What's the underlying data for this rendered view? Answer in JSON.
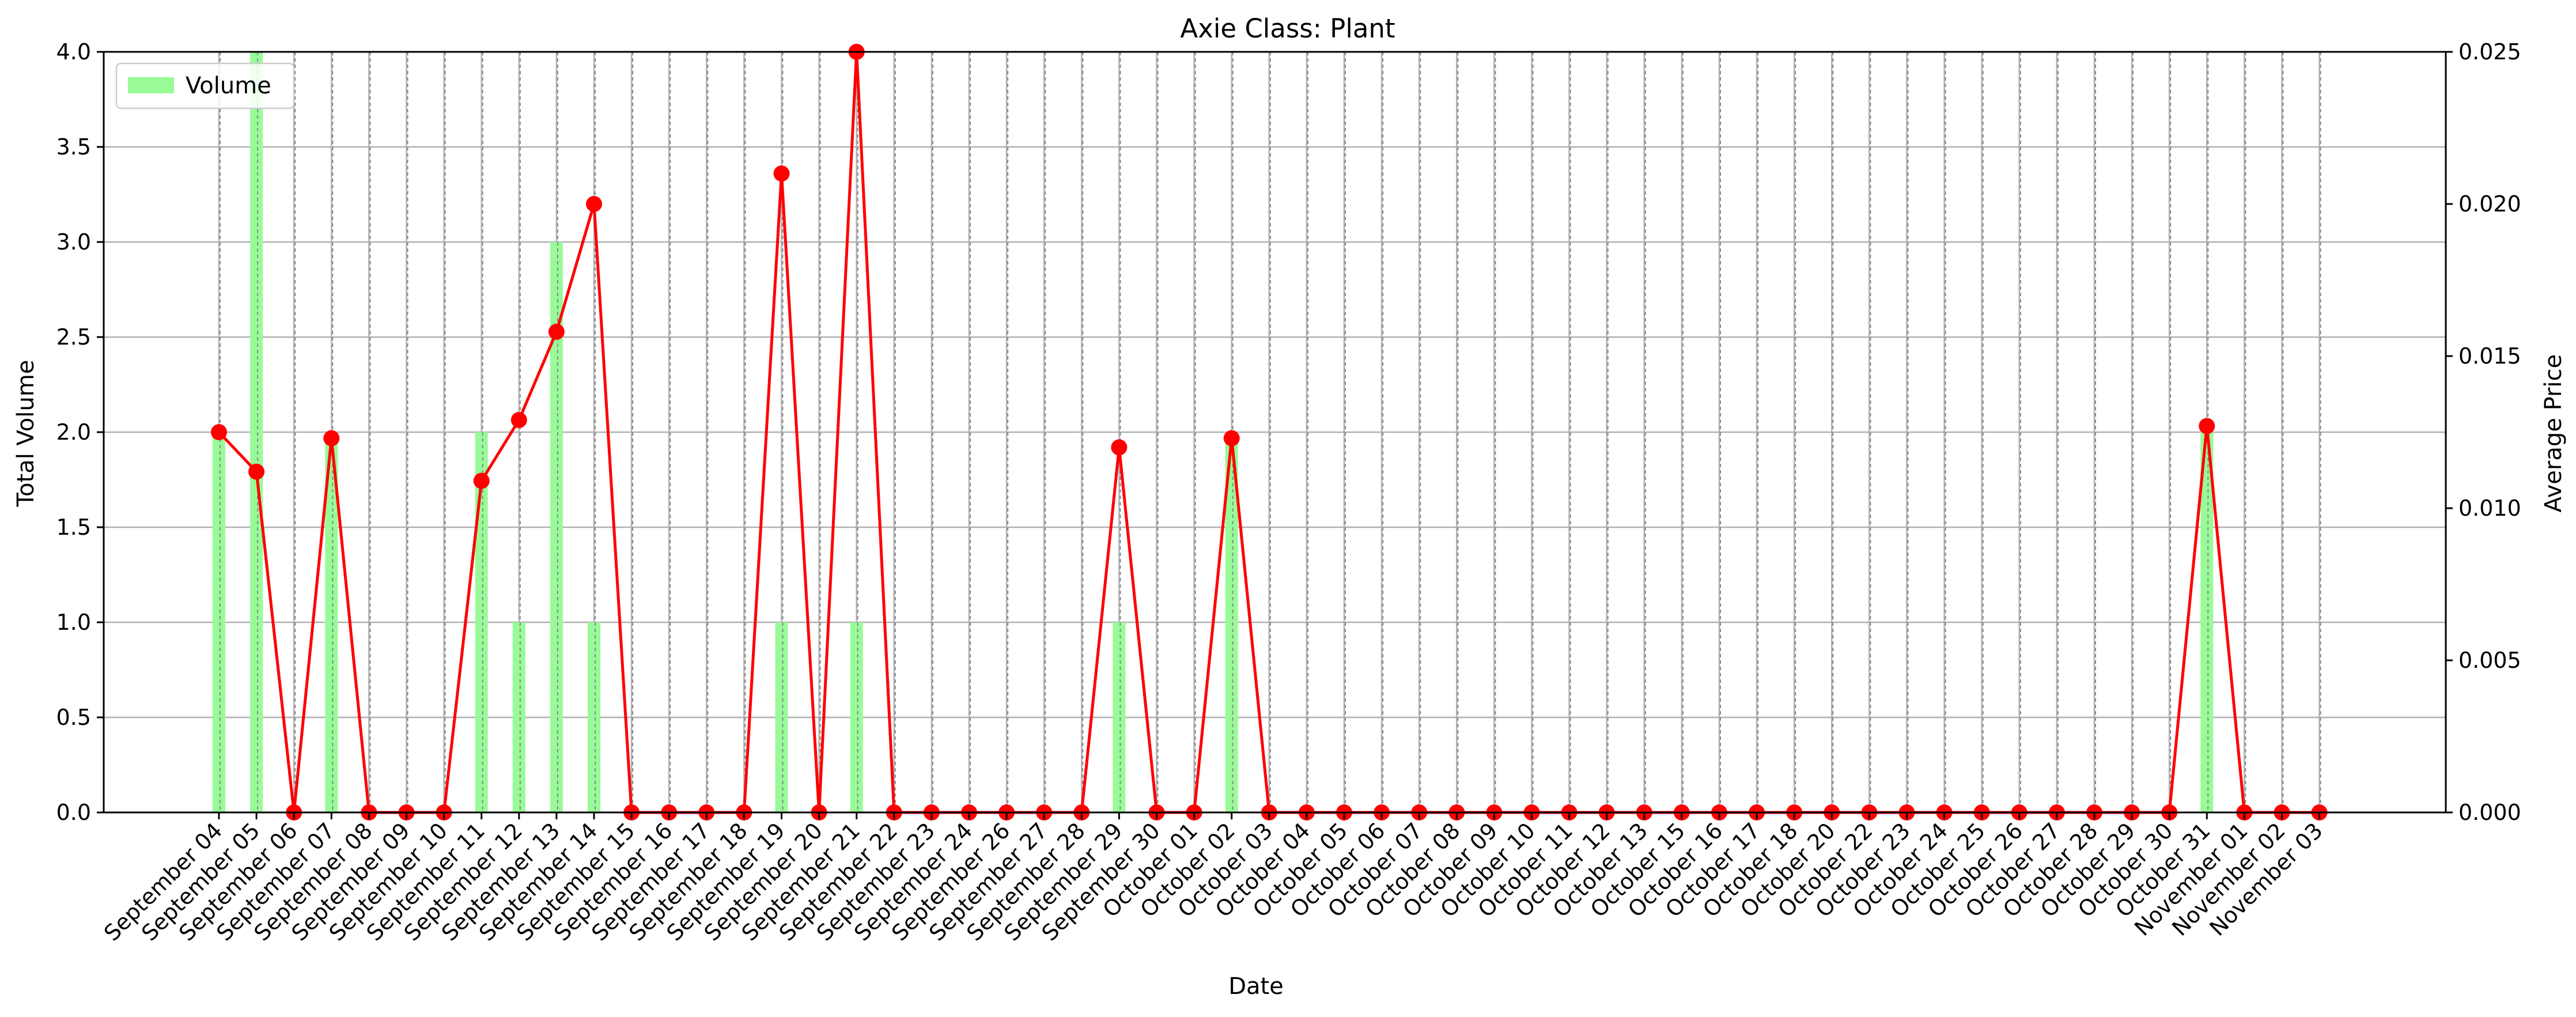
{
  "chart_data": {
    "type": "bar",
    "title": "Axie Class: Plant",
    "xlabel": "Date",
    "ylabel": "Total Volume",
    "y2label": "Average Price",
    "ylim": [
      0,
      4.0
    ],
    "y2lim": [
      0,
      0.025
    ],
    "yticks": [
      "0.0",
      "0.5",
      "1.0",
      "1.5",
      "2.0",
      "2.5",
      "3.0",
      "3.5",
      "4.0"
    ],
    "y2ticks": [
      "0.000",
      "0.005",
      "0.010",
      "0.015",
      "0.020",
      "0.025"
    ],
    "grid": true,
    "legend": {
      "position": "top-left",
      "entries": [
        "Volume"
      ]
    },
    "categories": [
      "September 04",
      "September 05",
      "September 06",
      "September 07",
      "September 08",
      "September 09",
      "September 10",
      "September 11",
      "September 12",
      "September 13",
      "September 14",
      "September 15",
      "September 16",
      "September 17",
      "September 18",
      "September 19",
      "September 20",
      "September 21",
      "September 22",
      "September 23",
      "September 24",
      "September 26",
      "September 27",
      "September 28",
      "September 29",
      "September 30",
      "October 01",
      "October 02",
      "October 03",
      "October 04",
      "October 05",
      "October 06",
      "October 07",
      "October 08",
      "October 09",
      "October 10",
      "October 11",
      "October 12",
      "October 13",
      "October 15",
      "October 16",
      "October 17",
      "October 18",
      "October 20",
      "October 22",
      "October 23",
      "October 24",
      "October 25",
      "October 26",
      "October 27",
      "October 28",
      "October 29",
      "October 30",
      "October 31",
      "November 01",
      "November 02",
      "November 03"
    ],
    "series": [
      {
        "name": "Volume",
        "type": "bar",
        "axis": "left",
        "color": "#98fb98",
        "values": [
          2,
          4,
          0,
          2,
          0,
          0,
          0,
          2,
          1,
          3,
          1,
          0,
          0,
          0,
          0,
          1,
          0,
          1,
          0,
          0,
          0,
          0,
          0,
          0,
          1,
          0,
          0,
          2,
          0,
          0,
          0,
          0,
          0,
          0,
          0,
          0,
          0,
          0,
          0,
          0,
          0,
          0,
          0,
          0,
          0,
          0,
          0,
          0,
          0,
          0,
          0,
          0,
          0,
          2,
          0,
          0,
          0
        ]
      },
      {
        "type": "line",
        "axis": "right",
        "color": "#ff0000",
        "values": [
          0.0125,
          0.0112,
          0,
          0.0123,
          0,
          0,
          0,
          0.0109,
          0.0129,
          0.0158,
          0.02,
          0,
          0,
          0,
          0,
          0.021,
          0,
          0.025,
          0,
          0,
          0,
          0,
          0,
          0,
          0.012,
          0,
          0,
          0.0123,
          0,
          0,
          0,
          0,
          0,
          0,
          0,
          0,
          0,
          0,
          0,
          0,
          0,
          0,
          0,
          0,
          0,
          0,
          0,
          0,
          0,
          0,
          0,
          0,
          0,
          0.0127,
          0,
          0,
          0
        ]
      }
    ]
  }
}
